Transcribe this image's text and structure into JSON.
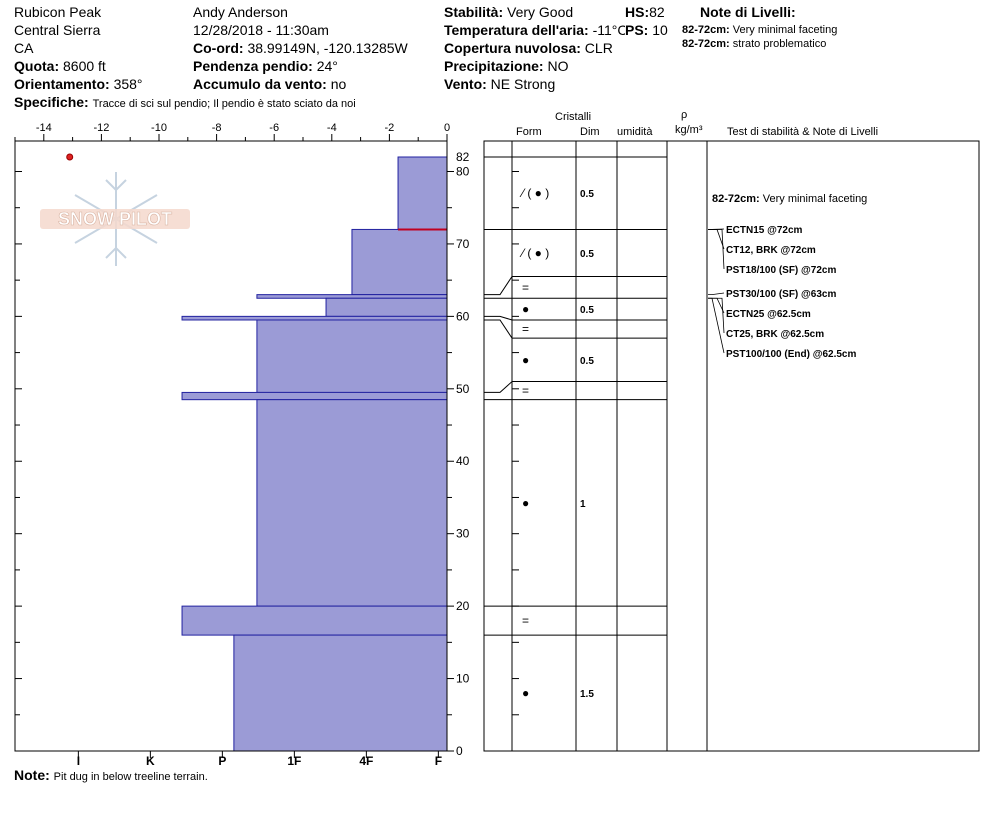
{
  "header": {
    "location": "Rubicon Peak",
    "range": "Central Sierra",
    "state": "CA",
    "elevation_label": "Quota:",
    "elevation_value": "8600 ft",
    "aspect_label": "Orientamento:",
    "aspect_value": "358°",
    "specifics_label": "Specifiche:",
    "specifics_value": "Tracce di sci sul pendio;  Il pendio è stato sciato da noi",
    "observer": "Andy Anderson",
    "datetime": "12/28/2018 - 11:30am",
    "coord_label": "Co-ord:",
    "coord_value": "38.99149N, -120.13285W",
    "slope_label": "Pendenza pendio:",
    "slope_value": "24°",
    "wind_loading_label": "Accumulo da vento:",
    "wind_loading_value": "no",
    "stability_label": "Stabilità:",
    "stability_value": "Very Good",
    "air_temp_label": "Temperatura dell'aria:",
    "air_temp_value": "-11°C",
    "cloud_label": "Copertura nuvolosa:",
    "cloud_value": "CLR",
    "precip_label": "Precipitazione:",
    "precip_value": "NO",
    "wind_label": "Vento:",
    "wind_value": "NE Strong",
    "hs_label": "HS:",
    "hs_value": "82",
    "ps_label": "PS:",
    "ps_value": "10",
    "layer_notes_title": "Note di Livelli:",
    "layer_notes": [
      {
        "range": "82-72cm:",
        "text": "Very minimal faceting"
      },
      {
        "range": "82-72cm:",
        "text": "strato problematico"
      }
    ]
  },
  "logo_text": "SNOW PILOT",
  "note_label": "Note:",
  "note_value": "Pit dug in below treeline terrain.",
  "table_headers": {
    "crystals": "Cristalli",
    "form": "Form",
    "size": "Dim",
    "moisture": "umidità",
    "density_symbol": "ρ",
    "density_unit": "kg/m³",
    "tests": "Test di stabilità & Note di Livelli"
  },
  "chart_data": {
    "type": "bar",
    "orientation": "horizontal",
    "y_axis": {
      "label": "",
      "range": [
        0,
        82
      ],
      "ticks": [
        0,
        10,
        20,
        30,
        40,
        50,
        60,
        70,
        80,
        82
      ]
    },
    "temperature_axis": {
      "range": [
        -15,
        0
      ],
      "ticks": [
        -14,
        -12,
        -10,
        -8,
        -6,
        -4,
        -2,
        0
      ]
    },
    "hardness_axis": {
      "ticks": [
        "I",
        "K",
        "P",
        "1F",
        "4F",
        "F"
      ],
      "values": [
        -12.8,
        -10.3,
        -7.8,
        -5.3,
        -2.8,
        -0.3
      ]
    },
    "temperature_points": [
      {
        "depth": 82,
        "temp": -13.1
      }
    ],
    "hardness_profile": [
      {
        "bottom": 72,
        "top": 82,
        "hardness": -1.7
      },
      {
        "bottom": 63,
        "top": 72,
        "hardness": -3.3
      },
      {
        "bottom": 62.5,
        "top": 63,
        "hardness": -6.6
      },
      {
        "bottom": 60,
        "top": 62.5,
        "hardness": -4.2
      },
      {
        "bottom": 59.5,
        "top": 60,
        "hardness": -9.2
      },
      {
        "bottom": 49.5,
        "top": 59.5,
        "hardness": -6.6
      },
      {
        "bottom": 48.5,
        "top": 49.5,
        "hardness": -9.2
      },
      {
        "bottom": 20,
        "top": 48.5,
        "hardness": -6.6
      },
      {
        "bottom": 16,
        "top": 20,
        "hardness": -9.2
      },
      {
        "bottom": 0,
        "top": 16,
        "hardness": -7.4
      }
    ],
    "problem_layer_depth": 72,
    "layer_boundaries": [
      82,
      72,
      65.5,
      62.5,
      59.5,
      57,
      51,
      48.5,
      20,
      16,
      0
    ],
    "layer_rows": [
      {
        "form": "⁄ ( ● )",
        "size": "0.5",
        "top": 82,
        "bottom": 72
      },
      {
        "form": "⁄ ( ● )",
        "size": "0.5",
        "top": 72,
        "bottom": 65.5
      },
      {
        "form": "=",
        "size": "",
        "top": 65.5,
        "bottom": 62.5
      },
      {
        "form": "●",
        "size": "0.5",
        "top": 62.5,
        "bottom": 59.5
      },
      {
        "form": "=",
        "size": "",
        "top": 59.5,
        "bottom": 57
      },
      {
        "form": "●",
        "size": "0.5",
        "top": 57,
        "bottom": 51
      },
      {
        "form": "=",
        "size": "",
        "top": 51,
        "bottom": 48.5
      },
      {
        "form": "●",
        "size": "1",
        "top": 48.5,
        "bottom": 20
      },
      {
        "form": "=",
        "size": "",
        "top": 20,
        "bottom": 16
      },
      {
        "form": "●",
        "size": "1.5",
        "top": 16,
        "bottom": 0
      }
    ],
    "layer_note": {
      "range": "82-72cm:",
      "text": "Very minimal faceting",
      "depth": 76
    },
    "tests": [
      {
        "label": "ECTN15 @72cm",
        "depth": 72
      },
      {
        "label": "CT12, BRK @72cm",
        "depth": 72
      },
      {
        "label": "PST18/100 (SF) @72cm",
        "depth": 72
      },
      {
        "label": "PST30/100 (SF) @63cm",
        "depth": 63
      },
      {
        "label": "ECTN25 @62.5cm",
        "depth": 62.5
      },
      {
        "label": "CT25, BRK @62.5cm",
        "depth": 62.5
      },
      {
        "label": "PST100/100 (End) @62.5cm",
        "depth": 62.5
      }
    ]
  }
}
